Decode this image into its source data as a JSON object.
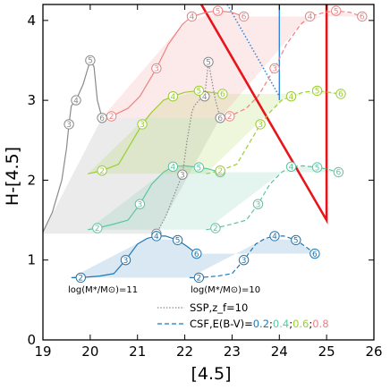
{
  "chart_data": {
    "type": "line",
    "xlabel": "[4.5]",
    "ylabel": "H-[4.5]",
    "xlim": [
      19,
      26
    ],
    "ylim": [
      0,
      4.2
    ],
    "xticks": [
      "19",
      "20",
      "21",
      "22",
      "23",
      "24",
      "25",
      "26"
    ],
    "yticks": [
      "0",
      "1",
      "2",
      "3",
      "4"
    ],
    "grid": false,
    "legend_position": "bottom-right",
    "legend": {
      "ssp_label": "SSP,z_f=10",
      "csf_label_prefix": "CSF,E(B-V)=",
      "csf_values": [
        "0.2",
        "0.4",
        "0.6",
        "0.8"
      ],
      "separator": ";"
    },
    "annotations": [
      "log(M*/M⊙)=11",
      "log(M*/M⊙)=10"
    ],
    "colors": {
      "ssp": "#8a8a8a",
      "ebv_0.0": "#1f77b4",
      "ebv_0.2": "#1f77b4",
      "ebv_0.4": "#5cc6a0",
      "ebv_0.6": "#9acd32",
      "ebv_0.8": "#f08080",
      "selection_red": "#e8141b",
      "selection_blue": "#3388dd"
    },
    "series": [
      {
        "name": "SSP log(M*/M⊙)=11",
        "style": "solid",
        "color_key": "ssp",
        "x": [
          19.0,
          19.2,
          19.4,
          19.5,
          19.55,
          19.6,
          19.7,
          19.85,
          20.0,
          20.08,
          20.15,
          20.25
        ],
        "y": [
          1.35,
          1.6,
          2.0,
          2.4,
          2.7,
          2.93,
          3.0,
          3.2,
          3.5,
          3.42,
          3.0,
          2.78
        ],
        "markers": [
          {
            "i": 4,
            "t": "3"
          },
          {
            "i": 6,
            "t": "4"
          },
          {
            "i": 8,
            "t": "5"
          },
          {
            "i": 11,
            "t": "6"
          }
        ]
      },
      {
        "name": "SSP log(M*/M⊙)=10",
        "style": "dotted",
        "color_key": "ssp",
        "x": [
          21.4,
          21.6,
          21.8,
          21.95,
          22.05,
          22.15,
          22.2,
          22.3,
          22.42,
          22.5,
          22.65,
          22.75
        ],
        "y": [
          1.33,
          1.55,
          1.85,
          2.07,
          2.5,
          2.85,
          2.93,
          3.0,
          3.05,
          3.48,
          3.0,
          2.78
        ],
        "markers": [
          {
            "i": 0,
            "t": "2"
          },
          {
            "i": 3,
            "t": "3"
          },
          {
            "i": 8,
            "t": "4"
          },
          {
            "i": 9,
            "t": "5"
          },
          {
            "i": 11,
            "t": "6"
          }
        ]
      },
      {
        "name": "CSF E(B-V)=0.0 log(M*/M⊙)=11",
        "style": "solid",
        "color_key": "ebv_0.0",
        "x": [
          19.6,
          19.8,
          20.2,
          20.5,
          20.75,
          21.0,
          21.2,
          21.4,
          21.6,
          21.85,
          22.05,
          22.25
        ],
        "y": [
          0.78,
          0.78,
          0.8,
          0.83,
          1.0,
          1.2,
          1.27,
          1.3,
          1.3,
          1.25,
          1.17,
          1.08
        ],
        "markers": [
          {
            "i": 1,
            "t": "2"
          },
          {
            "i": 4,
            "t": "3"
          },
          {
            "i": 7,
            "t": "4"
          },
          {
            "i": 9,
            "t": "5"
          },
          {
            "i": 11,
            "t": "6"
          }
        ]
      },
      {
        "name": "CSF E(B-V)=0.0 log(M*/M⊙)=10",
        "style": "dashed",
        "color_key": "ebv_0.0",
        "x": [
          22.1,
          22.3,
          22.7,
          23.0,
          23.25,
          23.5,
          23.7,
          23.9,
          24.1,
          24.35,
          24.55,
          24.75
        ],
        "y": [
          0.78,
          0.78,
          0.8,
          0.83,
          1.0,
          1.2,
          1.27,
          1.3,
          1.3,
          1.25,
          1.17,
          1.08
        ],
        "markers": [
          {
            "i": 1,
            "t": "2"
          },
          {
            "i": 4,
            "t": "3"
          },
          {
            "i": 7,
            "t": "4"
          },
          {
            "i": 9,
            "t": "5"
          },
          {
            "i": 11,
            "t": "6"
          }
        ]
      },
      {
        "name": "CSF E(B-V)=0.2 log(M*/M⊙)=11",
        "style": "solid",
        "color_key": "ebv_0.4",
        "x": [
          19.95,
          20.15,
          20.5,
          20.8,
          21.05,
          21.3,
          21.55,
          21.75,
          22.0,
          22.3,
          22.5,
          22.75
        ],
        "y": [
          1.38,
          1.4,
          1.45,
          1.5,
          1.7,
          1.95,
          2.1,
          2.17,
          2.18,
          2.16,
          2.14,
          2.1
        ],
        "markers": [
          {
            "i": 1,
            "t": "2"
          },
          {
            "i": 4,
            "t": "3"
          },
          {
            "i": 7,
            "t": "4"
          },
          {
            "i": 9,
            "t": "5"
          },
          {
            "i": 11,
            "t": "6"
          }
        ]
      },
      {
        "name": "CSF E(B-V)=0.2 log(M*/M⊙)=10",
        "style": "dashed",
        "color_key": "ebv_0.4",
        "x": [
          22.45,
          22.65,
          23.0,
          23.3,
          23.55,
          23.8,
          24.05,
          24.25,
          24.5,
          24.8,
          25.0,
          25.25
        ],
        "y": [
          1.38,
          1.4,
          1.45,
          1.5,
          1.7,
          1.95,
          2.1,
          2.17,
          2.18,
          2.16,
          2.14,
          2.1
        ],
        "markers": [
          {
            "i": 1,
            "t": "2"
          },
          {
            "i": 4,
            "t": "3"
          },
          {
            "i": 7,
            "t": "4"
          },
          {
            "i": 9,
            "t": "5"
          },
          {
            "i": 11,
            "t": "6"
          }
        ]
      },
      {
        "name": "CSF E(B-V)=0.4 log(M*/M⊙)=11",
        "style": "solid",
        "color_key": "ebv_0.6",
        "x": [
          19.95,
          20.25,
          20.6,
          20.85,
          21.1,
          21.3,
          21.55,
          21.75,
          22.0,
          22.3,
          22.55,
          22.8
        ],
        "y": [
          2.08,
          2.12,
          2.2,
          2.45,
          2.7,
          2.85,
          3.0,
          3.05,
          3.1,
          3.12,
          3.1,
          3.08
        ],
        "markers": [
          {
            "i": 1,
            "t": "2"
          },
          {
            "i": 4,
            "t": "3"
          },
          {
            "i": 7,
            "t": "4"
          },
          {
            "i": 9,
            "t": "5"
          },
          {
            "i": 11,
            "t": "6"
          }
        ]
      },
      {
        "name": "CSF E(B-V)=0.4 log(M*/M⊙)=10",
        "style": "dashed",
        "color_key": "ebv_0.6",
        "x": [
          22.45,
          22.75,
          23.1,
          23.35,
          23.6,
          23.8,
          24.05,
          24.25,
          24.5,
          24.8,
          25.05,
          25.3
        ],
        "y": [
          2.08,
          2.12,
          2.2,
          2.45,
          2.7,
          2.85,
          3.0,
          3.05,
          3.1,
          3.12,
          3.1,
          3.08
        ],
        "markers": [
          {
            "i": 1,
            "t": "2"
          },
          {
            "i": 4,
            "t": "3"
          },
          {
            "i": 7,
            "t": "4"
          },
          {
            "i": 9,
            "t": "5"
          },
          {
            "i": 11,
            "t": "6"
          }
        ]
      },
      {
        "name": "CSF E(B-V)=0.6 log(M*/M⊙)=11",
        "style": "solid",
        "color_key": "ebv_0.8",
        "x": [
          20.25,
          20.45,
          20.8,
          21.05,
          21.4,
          21.65,
          21.95,
          22.15,
          22.45,
          22.7,
          23.0,
          23.25
        ],
        "y": [
          2.78,
          2.8,
          2.9,
          3.05,
          3.4,
          3.7,
          3.95,
          4.05,
          4.1,
          4.12,
          4.1,
          4.05
        ],
        "markers": [
          {
            "i": 1,
            "t": "2"
          },
          {
            "i": 4,
            "t": "3"
          },
          {
            "i": 7,
            "t": "4"
          },
          {
            "i": 9,
            "t": "5"
          },
          {
            "i": 11,
            "t": "6"
          }
        ]
      },
      {
        "name": "CSF E(B-V)=0.6 log(M*/M⊙)=10",
        "style": "dashed",
        "color_key": "ebv_0.8",
        "x": [
          22.75,
          22.95,
          23.3,
          23.55,
          23.9,
          24.15,
          24.45,
          24.65,
          24.95,
          25.2,
          25.5,
          25.75
        ],
        "y": [
          2.78,
          2.8,
          2.9,
          3.05,
          3.4,
          3.7,
          3.95,
          4.05,
          4.1,
          4.12,
          4.1,
          4.05
        ],
        "markers": [
          {
            "i": 1,
            "t": "2"
          },
          {
            "i": 4,
            "t": "3"
          },
          {
            "i": 7,
            "t": "4"
          },
          {
            "i": 9,
            "t": "5"
          },
          {
            "i": 11,
            "t": "6"
          }
        ]
      }
    ],
    "bands": [
      {
        "color_key": "ssp",
        "x": [
          19.0,
          20.25,
          22.3,
          22.75,
          21.4,
          19.0
        ],
        "y": [
          1.35,
          2.78,
          2.78,
          2.78,
          1.33,
          1.33
        ]
      },
      {
        "color_key": "ebv_0.0",
        "x": [
          19.6,
          21.2,
          21.85,
          22.25,
          24.75,
          24.35,
          23.7,
          22.1
        ],
        "y": [
          0.78,
          1.27,
          1.25,
          1.08,
          1.08,
          1.25,
          1.27,
          0.78
        ]
      },
      {
        "color_key": "ebv_0.4",
        "x": [
          19.95,
          21.55,
          22.0,
          22.75,
          25.25,
          24.5,
          24.05,
          22.45
        ],
        "y": [
          1.38,
          2.1,
          2.18,
          2.1,
          2.1,
          2.18,
          2.1,
          1.38
        ]
      },
      {
        "color_key": "ebv_0.6",
        "x": [
          19.95,
          21.55,
          22.3,
          22.8,
          25.3,
          24.8,
          24.05,
          22.45
        ],
        "y": [
          2.08,
          3.0,
          3.12,
          3.08,
          3.08,
          3.12,
          3.0,
          2.08
        ]
      },
      {
        "color_key": "ebv_0.8",
        "x": [
          20.25,
          21.95,
          22.7,
          23.25,
          25.75,
          25.2,
          24.45,
          22.75
        ],
        "y": [
          2.78,
          3.95,
          4.12,
          4.05,
          4.05,
          4.12,
          3.95,
          2.78
        ]
      }
    ],
    "selection_lines": [
      {
        "color_key": "selection_red",
        "style": "solid",
        "x": [
          22.35,
          25.0,
          25.0
        ],
        "y": [
          4.2,
          1.5,
          4.2
        ]
      },
      {
        "color_key": "selection_blue",
        "style": "dotted",
        "x": [
          22.9,
          24.0
        ],
        "y": [
          4.2,
          3.05
        ]
      },
      {
        "color_key": "selection_blue",
        "style": "solid",
        "x": [
          24.0,
          24.0
        ],
        "y": [
          4.2,
          3.0
        ]
      }
    ]
  }
}
